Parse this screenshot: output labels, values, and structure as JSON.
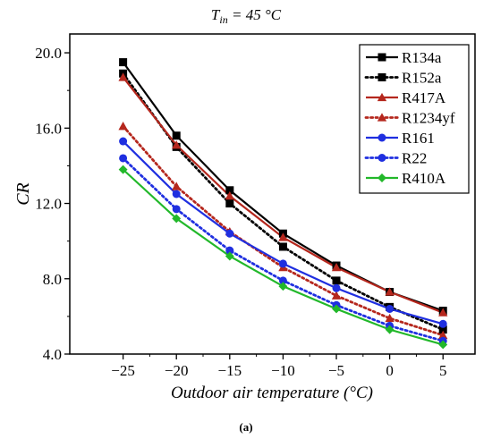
{
  "figure": {
    "title_main": "T",
    "title_sub": "in",
    "title_rest": " = 45 °C",
    "caption": "(a)"
  },
  "chart_data": {
    "type": "line",
    "xlabel": "Outdoor air temperature (°C)",
    "ylabel": "CR",
    "x": [
      -25,
      -20,
      -15,
      -10,
      -5,
      0,
      5
    ],
    "xticks": [
      "−25",
      "−20",
      "−15",
      "−10",
      "−5",
      "0",
      "5"
    ],
    "xlim": [
      -30,
      8
    ],
    "ylim": [
      4.0,
      21.0
    ],
    "yticks": [
      "4.0",
      "8.0",
      "12.0",
      "16.0",
      "20.0"
    ],
    "yticks_values": [
      4,
      8,
      12,
      16,
      20
    ],
    "legend_position": "top-right",
    "grid": false,
    "series": [
      {
        "name": "R134a",
        "color": "#000000",
        "dash": "solid",
        "marker": "square",
        "values": [
          19.5,
          15.6,
          12.7,
          10.4,
          8.7,
          7.3,
          6.3
        ]
      },
      {
        "name": "R152a",
        "color": "#000000",
        "dash": "dotted",
        "marker": "square",
        "values": [
          18.9,
          15.0,
          12.0,
          9.7,
          7.9,
          6.5,
          5.3
        ]
      },
      {
        "name": "R417A",
        "color": "#b5271d",
        "dash": "solid",
        "marker": "triangle",
        "values": [
          18.7,
          15.1,
          12.4,
          10.2,
          8.6,
          7.3,
          6.2
        ]
      },
      {
        "name": "R1234yf",
        "color": "#b5271d",
        "dash": "dotted",
        "marker": "triangle",
        "values": [
          16.1,
          12.9,
          10.5,
          8.6,
          7.1,
          5.9,
          5.0
        ]
      },
      {
        "name": "R161",
        "color": "#1f2fe0",
        "dash": "solid",
        "marker": "circle",
        "values": [
          15.3,
          12.5,
          10.4,
          8.8,
          7.5,
          6.4,
          5.6
        ]
      },
      {
        "name": "R22",
        "color": "#1f2fe0",
        "dash": "dotted",
        "marker": "circle",
        "values": [
          14.4,
          11.7,
          9.5,
          7.9,
          6.6,
          5.5,
          4.7
        ]
      },
      {
        "name": "R410A",
        "color": "#22b82a",
        "dash": "solid",
        "marker": "diamond",
        "values": [
          13.8,
          11.2,
          9.2,
          7.6,
          6.4,
          5.3,
          4.5
        ]
      }
    ]
  }
}
